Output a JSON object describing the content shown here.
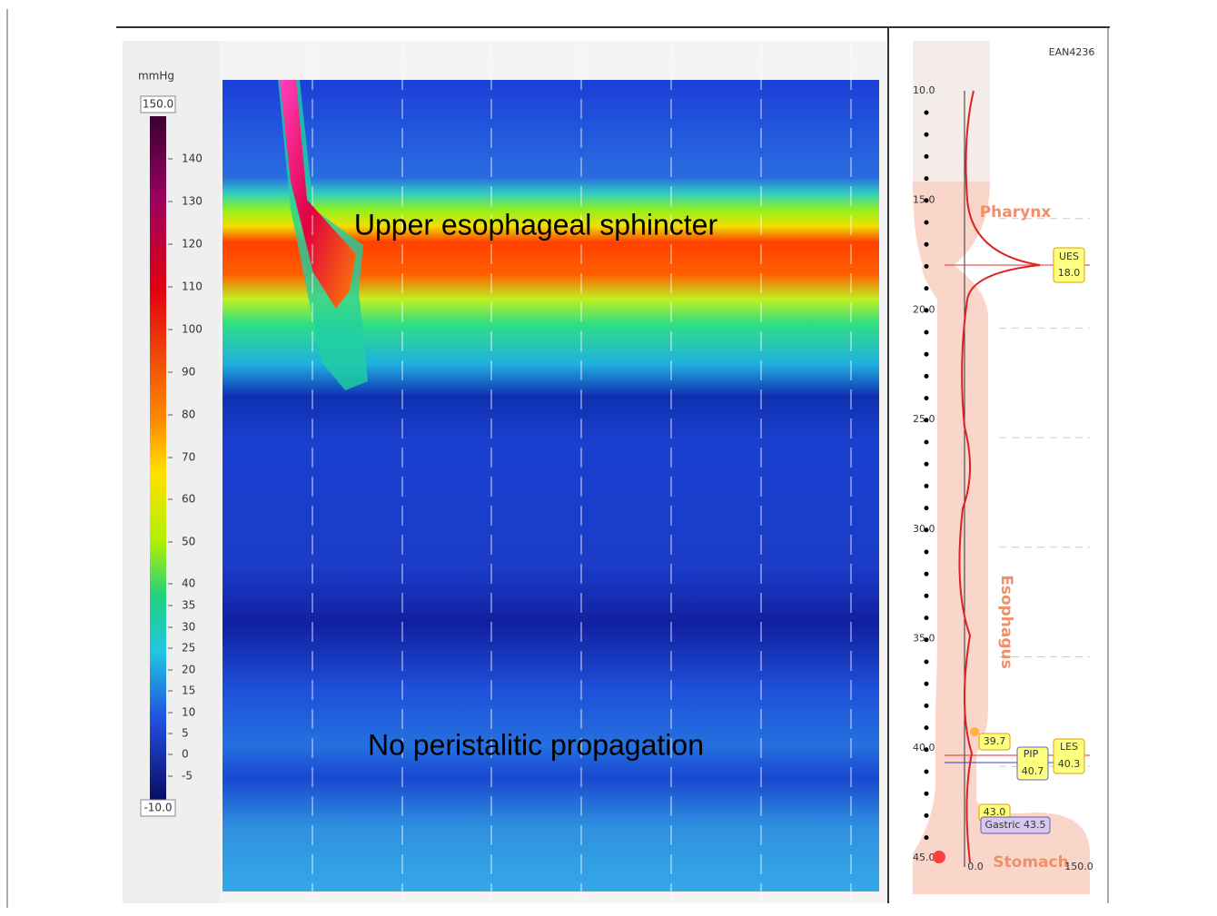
{
  "colorbar": {
    "unit": "mmHg",
    "max": "150.0",
    "min": "-10.0",
    "ticks": [
      "140",
      "130",
      "120",
      "110",
      "100",
      "90",
      "80",
      "70",
      "60",
      "50",
      "40",
      "35",
      "30",
      "25",
      "20",
      "15",
      "10",
      "5",
      "0",
      "-5"
    ]
  },
  "annotations": [
    "Upper esophageal sphincter",
    "No peristalitic propagation"
  ],
  "panel": {
    "id": "EAN4236",
    "depths": [
      "10.0",
      "15.0",
      "20.0",
      "25.0",
      "30.0",
      "35.0",
      "40.0",
      "45.0"
    ],
    "regions": [
      "Pharynx",
      "Esophagus",
      "Stomach"
    ],
    "ues": {
      "label": "UES",
      "value": "18.0"
    },
    "les": {
      "label": "LES",
      "value": "40.3"
    },
    "pip": {
      "label": "PIP",
      "value": "40.7"
    },
    "points": [
      "39.7",
      "43.0"
    ],
    "gastric": "Gastric 43.5",
    "axis": [
      "0.0",
      "150.0"
    ]
  }
}
